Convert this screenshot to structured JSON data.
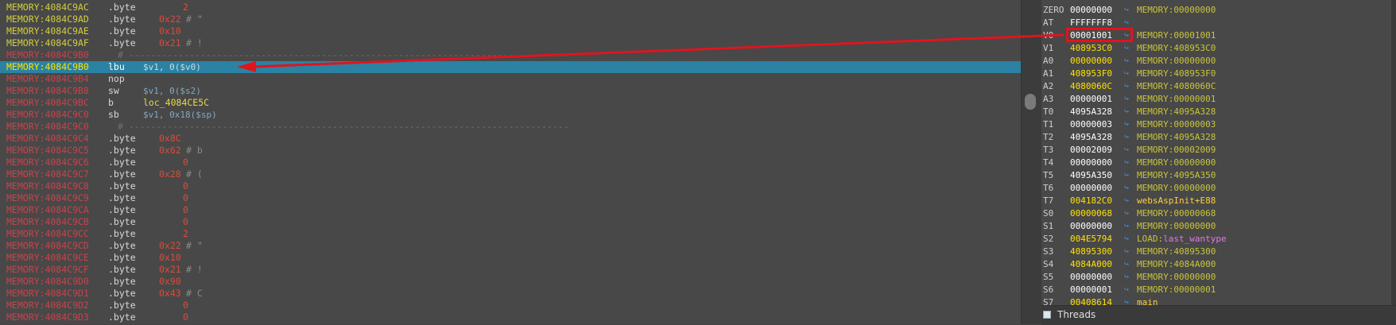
{
  "disasm": {
    "lines": [
      {
        "addr": "MEMORY:4084C9AC",
        "addr_color": "yellow",
        "mn": ".byte",
        "op": "2",
        "op_type": "num",
        "comment": ""
      },
      {
        "addr": "MEMORY:4084C9AD",
        "addr_color": "yellow",
        "mn": ".byte",
        "op": "0x22",
        "op_type": "num",
        "comment": "# \""
      },
      {
        "addr": "MEMORY:4084C9AE",
        "addr_color": "yellow",
        "mn": ".byte",
        "op": "0x10",
        "op_type": "num",
        "comment": ""
      },
      {
        "addr": "MEMORY:4084C9AF",
        "addr_color": "yellow",
        "mn": ".byte",
        "op": "0x21",
        "op_type": "num",
        "comment": "# !"
      },
      {
        "addr": "MEMORY:4084C9B0",
        "addr_color": "red",
        "mn": "",
        "op": "",
        "op_type": "sep",
        "comment": ""
      },
      {
        "addr": "MEMORY:4084C9B0",
        "addr_color": "yellow",
        "mn": "lbu",
        "op": "$v1, 0($v0)",
        "op_type": "reg",
        "comment": "",
        "current": true
      },
      {
        "addr": "MEMORY:4084C9B4",
        "addr_color": "red",
        "mn": "nop",
        "op": "",
        "op_type": "",
        "comment": ""
      },
      {
        "addr": "MEMORY:4084C9B8",
        "addr_color": "red",
        "mn": "sw",
        "op": "$v1, 0($s2)",
        "op_type": "reg",
        "comment": ""
      },
      {
        "addr": "MEMORY:4084C9BC",
        "addr_color": "red",
        "mn": "b",
        "op": "loc_4084CE5C",
        "op_type": "loc",
        "comment": ""
      },
      {
        "addr": "MEMORY:4084C9C0",
        "addr_color": "red",
        "mn": "sb",
        "op": "$v1, 0x18($sp)",
        "op_type": "reg",
        "comment": ""
      },
      {
        "addr": "MEMORY:4084C9C0",
        "addr_color": "red",
        "mn": "",
        "op": "",
        "op_type": "sep",
        "comment": ""
      },
      {
        "addr": "MEMORY:4084C9C4",
        "addr_color": "red",
        "mn": ".byte",
        "op": "0x8C",
        "op_type": "num",
        "comment": ""
      },
      {
        "addr": "MEMORY:4084C9C5",
        "addr_color": "red",
        "mn": ".byte",
        "op": "0x62",
        "op_type": "num",
        "comment": "# b"
      },
      {
        "addr": "MEMORY:4084C9C6",
        "addr_color": "red",
        "mn": ".byte",
        "op": "0",
        "op_type": "num",
        "comment": ""
      },
      {
        "addr": "MEMORY:4084C9C7",
        "addr_color": "red",
        "mn": ".byte",
        "op": "0x28",
        "op_type": "num",
        "comment": "# ("
      },
      {
        "addr": "MEMORY:4084C9C8",
        "addr_color": "red",
        "mn": ".byte",
        "op": "0",
        "op_type": "num",
        "comment": ""
      },
      {
        "addr": "MEMORY:4084C9C9",
        "addr_color": "red",
        "mn": ".byte",
        "op": "0",
        "op_type": "num",
        "comment": ""
      },
      {
        "addr": "MEMORY:4084C9CA",
        "addr_color": "red",
        "mn": ".byte",
        "op": "0",
        "op_type": "num",
        "comment": ""
      },
      {
        "addr": "MEMORY:4084C9CB",
        "addr_color": "red",
        "mn": ".byte",
        "op": "0",
        "op_type": "num",
        "comment": ""
      },
      {
        "addr": "MEMORY:4084C9CC",
        "addr_color": "red",
        "mn": ".byte",
        "op": "2",
        "op_type": "num",
        "comment": ""
      },
      {
        "addr": "MEMORY:4084C9CD",
        "addr_color": "red",
        "mn": ".byte",
        "op": "0x22",
        "op_type": "num",
        "comment": "# \""
      },
      {
        "addr": "MEMORY:4084C9CE",
        "addr_color": "red",
        "mn": ".byte",
        "op": "0x10",
        "op_type": "num",
        "comment": ""
      },
      {
        "addr": "MEMORY:4084C9CF",
        "addr_color": "red",
        "mn": ".byte",
        "op": "0x21",
        "op_type": "num",
        "comment": "# !"
      },
      {
        "addr": "MEMORY:4084C9D0",
        "addr_color": "red",
        "mn": ".byte",
        "op": "0x90",
        "op_type": "num",
        "comment": ""
      },
      {
        "addr": "MEMORY:4084C9D1",
        "addr_color": "red",
        "mn": ".byte",
        "op": "0x43",
        "op_type": "num",
        "comment": "# C"
      },
      {
        "addr": "MEMORY:4084C9D2",
        "addr_color": "red",
        "mn": ".byte",
        "op": "0",
        "op_type": "num",
        "comment": ""
      },
      {
        "addr": "MEMORY:4084C9D3",
        "addr_color": "red",
        "mn": ".byte",
        "op": "0",
        "op_type": "num",
        "comment": ""
      }
    ]
  },
  "registers": [
    {
      "name": "ZERO",
      "value": "00000000",
      "ref": "MEMORY:00000000",
      "hl": false
    },
    {
      "name": "AT",
      "value": "FFFFFFF8",
      "ref": "",
      "hl": false
    },
    {
      "name": "V0",
      "value": "00001001",
      "ref": "MEMORY:00001001",
      "hl": false
    },
    {
      "name": "V1",
      "value": "408953C0",
      "ref": "MEMORY:408953C0",
      "hl": true
    },
    {
      "name": "A0",
      "value": "00000000",
      "ref": "MEMORY:00000000",
      "hl": true
    },
    {
      "name": "A1",
      "value": "408953F0",
      "ref": "MEMORY:408953F0",
      "hl": true
    },
    {
      "name": "A2",
      "value": "4080060C",
      "ref": "MEMORY:4080060C",
      "hl": true
    },
    {
      "name": "A3",
      "value": "00000001",
      "ref": "MEMORY:00000001",
      "hl": false
    },
    {
      "name": "T0",
      "value": "4095A328",
      "ref": "MEMORY:4095A328",
      "hl": false
    },
    {
      "name": "T1",
      "value": "00000003",
      "ref": "MEMORY:00000003",
      "hl": false
    },
    {
      "name": "T2",
      "value": "4095A328",
      "ref": "MEMORY:4095A328",
      "hl": false
    },
    {
      "name": "T3",
      "value": "00002009",
      "ref": "MEMORY:00002009",
      "hl": false
    },
    {
      "name": "T4",
      "value": "00000000",
      "ref": "MEMORY:00000000",
      "hl": false
    },
    {
      "name": "T5",
      "value": "4095A350",
      "ref": "MEMORY:4095A350",
      "hl": false
    },
    {
      "name": "T6",
      "value": "00000000",
      "ref": "MEMORY:00000000",
      "hl": false
    },
    {
      "name": "T7",
      "value": "004182C0",
      "ref": "websAspInit+E88",
      "hl": true,
      "fn": true
    },
    {
      "name": "S0",
      "value": "00000068",
      "ref": "MEMORY:00000068",
      "hl": true
    },
    {
      "name": "S1",
      "value": "00000000",
      "ref": "MEMORY:00000000",
      "hl": false
    },
    {
      "name": "S2",
      "value": "004E5794",
      "ref": "LOAD:",
      "ref_label": "last_wantype",
      "hl": true
    },
    {
      "name": "S3",
      "value": "40895300",
      "ref": "MEMORY:40895300",
      "hl": true
    },
    {
      "name": "S4",
      "value": "4084A000",
      "ref": "MEMORY:4084A000",
      "hl": true
    },
    {
      "name": "S5",
      "value": "00000000",
      "ref": "MEMORY:00000000",
      "hl": false
    },
    {
      "name": "S6",
      "value": "00000001",
      "ref": "MEMORY:00000001",
      "hl": false
    },
    {
      "name": "S7",
      "value": "00408614",
      "ref": "main",
      "hl": true,
      "fn": true
    }
  ],
  "threads_panel": {
    "label": "Threads"
  }
}
